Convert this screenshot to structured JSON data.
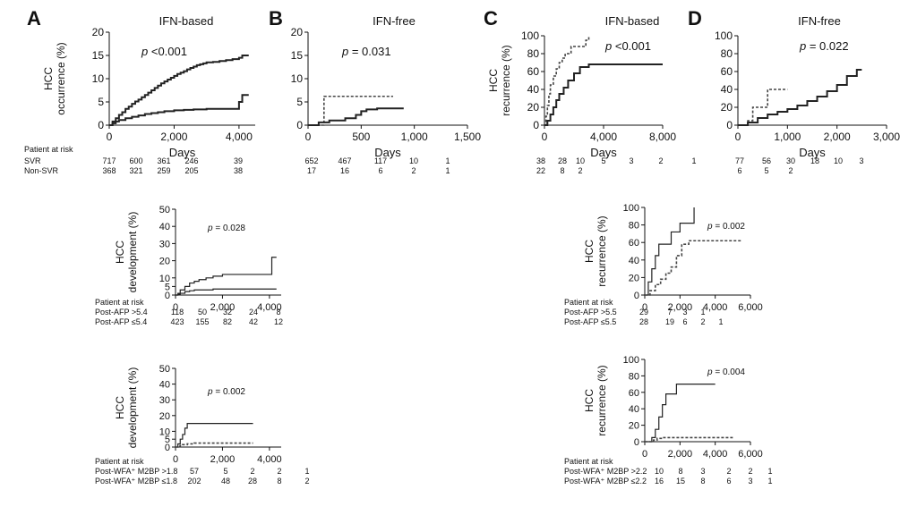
{
  "chart_data": [
    {
      "id": "A",
      "type": "line",
      "letter": "A",
      "title": "IFN-based",
      "xlabel": "Days",
      "ylabel": [
        "HCC",
        "occurrence (%)"
      ],
      "xlim": [
        0,
        4500
      ],
      "ylim": [
        0,
        20
      ],
      "xticks": [
        0,
        2000,
        4000
      ],
      "xtick_labels": [
        "0",
        "2,000",
        "4,000"
      ],
      "yticks": [
        0,
        5,
        10,
        15,
        20
      ],
      "ytick_labels": [
        "0",
        "5",
        "10",
        "15",
        "20"
      ],
      "pvalue": {
        "p": "p",
        "rest": " <0.001"
      },
      "series": [
        {
          "style": "solid",
          "x": [
            0,
            100,
            200,
            300,
            400,
            500,
            600,
            700,
            800,
            900,
            1000,
            1100,
            1200,
            1300,
            1400,
            1500,
            1600,
            1700,
            1800,
            1900,
            2000,
            2100,
            2200,
            2300,
            2400,
            2500,
            2600,
            2700,
            2800,
            2900,
            3000,
            3200,
            3400,
            3600,
            3800,
            4000,
            4100,
            4300
          ],
          "y": [
            0,
            0.8,
            1.5,
            2.2,
            2.8,
            3.5,
            4.0,
            4.6,
            5.1,
            5.5,
            6.0,
            6.5,
            7.0,
            7.5,
            8.0,
            8.5,
            9.0,
            9.4,
            9.8,
            10.2,
            10.6,
            11.0,
            11.3,
            11.6,
            12.0,
            12.3,
            12.6,
            12.9,
            13.1,
            13.3,
            13.5,
            13.6,
            13.8,
            14.0,
            14.2,
            14.5,
            15.0,
            15.0
          ]
        },
        {
          "style": "solid",
          "x": [
            0,
            100,
            200,
            300,
            500,
            700,
            900,
            1100,
            1300,
            1500,
            1700,
            2000,
            2300,
            2600,
            3000,
            3500,
            3900,
            4000,
            4100,
            4300
          ],
          "y": [
            0,
            0.4,
            0.8,
            1.1,
            1.5,
            1.8,
            2.1,
            2.4,
            2.6,
            2.8,
            3.0,
            3.2,
            3.3,
            3.4,
            3.5,
            3.5,
            3.5,
            5.0,
            6.5,
            6.5
          ]
        }
      ],
      "risk": {
        "header": "Patient at risk",
        "rows": [
          {
            "label": "SVR",
            "values": [
              "717",
              "600",
              "361",
              "246",
              "39"
            ]
          },
          {
            "label": "Non-SVR",
            "values": [
              "368",
              "321",
              "259",
              "205",
              "38"
            ]
          }
        ],
        "at": [
          0,
          1000,
          2000,
          3000,
          4000
        ]
      }
    },
    {
      "id": "B",
      "type": "line",
      "letter": "B",
      "title": "IFN-free",
      "xlabel": "Days",
      "ylabel": [],
      "xlim": [
        0,
        1500
      ],
      "ylim": [
        0,
        20
      ],
      "xticks": [
        0,
        500,
        1000,
        1500
      ],
      "xtick_labels": [
        "0",
        "500",
        "1,000",
        "1,500"
      ],
      "yticks": [
        0,
        5,
        10,
        15,
        20
      ],
      "ytick_labels": [
        "0",
        "5",
        "10",
        "15",
        "20"
      ],
      "pvalue": {
        "p": "p",
        "rest": " = 0.031"
      },
      "series": [
        {
          "style": "dash",
          "x": [
            0,
            150,
            150,
            300,
            500,
            700,
            800
          ],
          "y": [
            0,
            0,
            6.2,
            6.2,
            6.2,
            6.2,
            6.2
          ]
        },
        {
          "style": "solid",
          "x": [
            0,
            100,
            200,
            350,
            450,
            500,
            550,
            650,
            750,
            900
          ],
          "y": [
            0,
            0.6,
            1.0,
            1.5,
            2.2,
            3.0,
            3.4,
            3.6,
            3.6,
            3.6
          ]
        }
      ],
      "risk": {
        "header": "",
        "rows": [
          {
            "label": "",
            "values": [
              "652",
              "467",
              "117",
              "10",
              "1"
            ]
          },
          {
            "label": "",
            "values": [
              "17",
              "16",
              "6",
              "2",
              "1"
            ]
          }
        ],
        "at": [
          0,
          250,
          500,
          750,
          1000
        ]
      }
    },
    {
      "id": "C",
      "type": "line",
      "letter": "C",
      "title": "IFN-based",
      "xlabel": "Days",
      "ylabel": [
        "HCC",
        "recurrence (%)"
      ],
      "xlim": [
        0,
        8000
      ],
      "ylim": [
        0,
        100
      ],
      "xticks": [
        0,
        4000,
        8000
      ],
      "xtick_labels": [
        "0",
        "4,000",
        "8,000"
      ],
      "yticks": [
        0,
        20,
        40,
        60,
        80,
        100
      ],
      "ytick_labels": [
        "0",
        "20",
        "40",
        "60",
        "80",
        "100"
      ],
      "pvalue": {
        "p": "p",
        "rest": " <0.001"
      },
      "series": [
        {
          "style": "dash",
          "x": [
            0,
            100,
            200,
            300,
            400,
            600,
            800,
            1000,
            1200,
            1400,
            1800,
            2200,
            2600,
            2800,
            3000
          ],
          "y": [
            0,
            10,
            22,
            35,
            45,
            55,
            63,
            70,
            75,
            80,
            88,
            88,
            88,
            95,
            100
          ]
        },
        {
          "style": "solid",
          "x": [
            0,
            200,
            400,
            600,
            800,
            1000,
            1300,
            1600,
            2000,
            2400,
            3000,
            4000,
            5000,
            6000,
            7000,
            8000
          ],
          "y": [
            0,
            5,
            12,
            20,
            28,
            35,
            42,
            50,
            58,
            65,
            68,
            68,
            68,
            68,
            68,
            68
          ]
        }
      ],
      "risk": {
        "header": "",
        "rows": [
          {
            "label": "",
            "values": [
              "38",
              "28",
              "10",
              "5",
              "3",
              "2",
              "1"
            ]
          },
          {
            "label": "",
            "values": [
              "22",
              "8",
              "2"
            ]
          }
        ],
        "at": [
          0,
          1000,
          2000,
          3500,
          5000,
          6500,
          8000
        ]
      }
    },
    {
      "id": "D",
      "type": "line",
      "letter": "D",
      "title": "IFN-free",
      "xlabel": "Days",
      "ylabel": [],
      "xlim": [
        0,
        3000
      ],
      "ylim": [
        0,
        100
      ],
      "xticks": [
        0,
        1000,
        2000,
        3000
      ],
      "xtick_labels": [
        "0",
        "1,000",
        "2,000",
        "3,000"
      ],
      "yticks": [
        0,
        20,
        40,
        60,
        80,
        100
      ],
      "ytick_labels": [
        "0",
        "20",
        "40",
        "60",
        "80",
        "100"
      ],
      "pvalue": {
        "p": "p",
        "rest": " = 0.022"
      },
      "series": [
        {
          "style": "dash",
          "x": [
            0,
            200,
            300,
            400,
            500,
            600,
            700,
            800,
            900,
            1000
          ],
          "y": [
            0,
            5,
            20,
            20,
            20,
            40,
            40,
            40,
            40,
            40
          ]
        },
        {
          "style": "solid",
          "x": [
            0,
            200,
            400,
            600,
            800,
            1000,
            1200,
            1400,
            1600,
            1800,
            2000,
            2200,
            2400,
            2500
          ],
          "y": [
            0,
            3,
            8,
            12,
            15,
            18,
            22,
            27,
            32,
            38,
            45,
            55,
            62,
            62
          ]
        }
      ],
      "risk": {
        "header": "",
        "rows": [
          {
            "label": "",
            "values": [
              "77",
              "56",
              "30",
              "18",
              "10",
              "3"
            ]
          },
          {
            "label": "",
            "values": [
              "6",
              "5",
              "2"
            ]
          }
        ],
        "at": [
          0,
          500,
          1000,
          1500,
          2000,
          2500
        ]
      }
    },
    {
      "id": "A2",
      "type": "line",
      "letter": "",
      "title": "",
      "xlabel": "",
      "ylabel": [
        "HCC",
        "development (%)"
      ],
      "xlim": [
        0,
        4500
      ],
      "ylim": [
        0,
        50
      ],
      "xticks": [
        0,
        2000,
        4000
      ],
      "xtick_labels": [
        "0",
        "2,000",
        "4,000"
      ],
      "yticks": [
        0,
        5,
        10,
        20,
        30,
        40,
        50
      ],
      "ytick_labels": [
        "0",
        "5",
        "10",
        "20",
        "30",
        "40",
        "50"
      ],
      "pvalue": {
        "p": "p",
        "rest": " = 0.028"
      },
      "series": [
        {
          "style": "solid",
          "x": [
            0,
            100,
            200,
            400,
            600,
            800,
            1000,
            1300,
            1600,
            2000,
            2500,
            3000,
            3500,
            4000,
            4100,
            4300
          ],
          "y": [
            0,
            1,
            3,
            5,
            7,
            8,
            9,
            10,
            11,
            12,
            12,
            12,
            12,
            12,
            22,
            22
          ]
        },
        {
          "style": "solid",
          "x": [
            0,
            100,
            200,
            400,
            600,
            800,
            1000,
            1300,
            1600,
            2000,
            2500,
            3000,
            3500,
            4000,
            4300
          ],
          "y": [
            0,
            0.5,
            1,
            2,
            2.5,
            3,
            3,
            3,
            3.5,
            3.5,
            3.5,
            3.5,
            3.5,
            3.5,
            3.5
          ]
        }
      ],
      "risk": {
        "header": "Patient at risk",
        "rows": [
          {
            "label": "Post-AFP >5.4",
            "values": [
              "118",
              "50",
              "32",
              "24",
              "8"
            ]
          },
          {
            "label": "Post-AFP ≤5.4",
            "values": [
              "423",
              "155",
              "82",
              "42",
              "12"
            ]
          }
        ],
        "at": [
          0,
          1000,
          2000,
          3000,
          4000
        ]
      }
    },
    {
      "id": "A3",
      "type": "line",
      "letter": "",
      "title": "",
      "xlabel": "",
      "ylabel": [
        "HCC",
        "development (%)"
      ],
      "xlim": [
        0,
        4500
      ],
      "ylim": [
        0,
        50
      ],
      "xticks": [
        0,
        2000,
        4000
      ],
      "xtick_labels": [
        "0",
        "2,000",
        "4,000"
      ],
      "yticks": [
        0,
        5,
        10,
        20,
        30,
        40,
        50
      ],
      "ytick_labels": [
        "0",
        "5",
        "10",
        "20",
        "30",
        "40",
        "50"
      ],
      "pvalue": {
        "p": "p",
        "rest": " = 0.002"
      },
      "series": [
        {
          "style": "solid",
          "x": [
            0,
            100,
            200,
            300,
            400,
            500,
            600,
            800,
            1000,
            1500,
            2000,
            2500,
            3000,
            3300
          ],
          "y": [
            0,
            2,
            5,
            8,
            12,
            15,
            15,
            15,
            15,
            15,
            15,
            15,
            15,
            15
          ]
        },
        {
          "style": "dash",
          "x": [
            0,
            100,
            200,
            300,
            500,
            800,
            1200,
            2000,
            2500,
            3000,
            3300
          ],
          "y": [
            0,
            0.5,
            1,
            1.5,
            2,
            2.5,
            2.5,
            2.5,
            2.5,
            2.5,
            2.5
          ]
        }
      ],
      "risk": {
        "header": "Patient at risk",
        "rows": [
          {
            "label": "Post-WFA⁺ M2BP >1.8",
            "values": [
              "57",
              "5",
              "2",
              "2",
              "1"
            ]
          },
          {
            "label": "Post-WFA⁺ M2BP ≤1.8",
            "values": [
              "202",
              "48",
              "28",
              "8",
              "2"
            ]
          }
        ],
        "at": [
          0,
          1000,
          2000,
          3000,
          4000
        ]
      }
    },
    {
      "id": "C2",
      "type": "line",
      "letter": "",
      "title": "",
      "xlabel": "",
      "ylabel": [
        "HCC",
        "recurrence (%)"
      ],
      "xlim": [
        0,
        6000
      ],
      "ylim": [
        0,
        100
      ],
      "xticks": [
        0,
        2000,
        4000,
        6000
      ],
      "xtick_labels": [
        "0",
        "2,000",
        "4,000",
        "6,000"
      ],
      "yticks": [
        0,
        20,
        40,
        60,
        80,
        100
      ],
      "ytick_labels": [
        "0",
        "20",
        "40",
        "60",
        "80",
        "100"
      ],
      "pvalue": {
        "p": "p",
        "rest": " = 0.002"
      },
      "series": [
        {
          "style": "solid",
          "x": [
            0,
            200,
            400,
            600,
            800,
            1000,
            1500,
            2000,
            2500,
            2800
          ],
          "y": [
            0,
            15,
            30,
            45,
            58,
            58,
            72,
            82,
            82,
            100
          ]
        },
        {
          "style": "dash",
          "x": [
            0,
            300,
            600,
            900,
            1200,
            1500,
            1800,
            2100,
            2500,
            3500,
            4500,
            5500
          ],
          "y": [
            0,
            5,
            12,
            18,
            25,
            32,
            45,
            58,
            62,
            62,
            62,
            62
          ]
        }
      ],
      "risk": {
        "header": "Patient at risk",
        "rows": [
          {
            "label": "Post-AFP >5.5",
            "values": [
              "29",
              "7",
              "3",
              "1"
            ]
          },
          {
            "label": "Post-AFP ≤5.5",
            "values": [
              "28",
              "19",
              "6",
              "2",
              "1"
            ]
          }
        ],
        "at": [
          0,
          1000,
          2000,
          3000,
          4000
        ]
      }
    },
    {
      "id": "C3",
      "type": "line",
      "letter": "",
      "title": "",
      "xlabel": "",
      "ylabel": [
        "HCC",
        "recurrence (%)"
      ],
      "xlim": [
        0,
        6000
      ],
      "ylim": [
        0,
        100
      ],
      "xticks": [
        0,
        2000,
        4000,
        6000
      ],
      "xtick_labels": [
        "0",
        "2,000",
        "4,000",
        "6,000"
      ],
      "yticks": [
        0,
        20,
        40,
        60,
        80,
        100
      ],
      "ytick_labels": [
        "0",
        "20",
        "40",
        "60",
        "80",
        "100"
      ],
      "pvalue": {
        "p": "p",
        "rest": " = 0.004"
      },
      "series": [
        {
          "style": "solid",
          "x": [
            0,
            400,
            600,
            800,
            1000,
            1200,
            1500,
            1800,
            2200,
            4000
          ],
          "y": [
            0,
            5,
            15,
            30,
            45,
            58,
            58,
            70,
            70,
            70
          ]
        },
        {
          "style": "dash",
          "x": [
            0,
            500,
            700,
            1000,
            1500,
            2500,
            3500,
            5000
          ],
          "y": [
            0,
            2,
            4,
            5,
            5,
            5,
            5,
            5
          ]
        }
      ],
      "risk": {
        "header": "Patient at risk",
        "rows": [
          {
            "label": "Post-WFA⁺ M2BP >2.2",
            "values": [
              "10",
              "8",
              "3",
              "2",
              "2",
              "1"
            ]
          },
          {
            "label": "Post-WFA⁺ M2BP ≤2.2",
            "values": [
              "16",
              "15",
              "8",
              "6",
              "3",
              "1"
            ]
          }
        ],
        "at": [
          0,
          800,
          1600,
          2400,
          3200,
          4000
        ]
      }
    }
  ]
}
